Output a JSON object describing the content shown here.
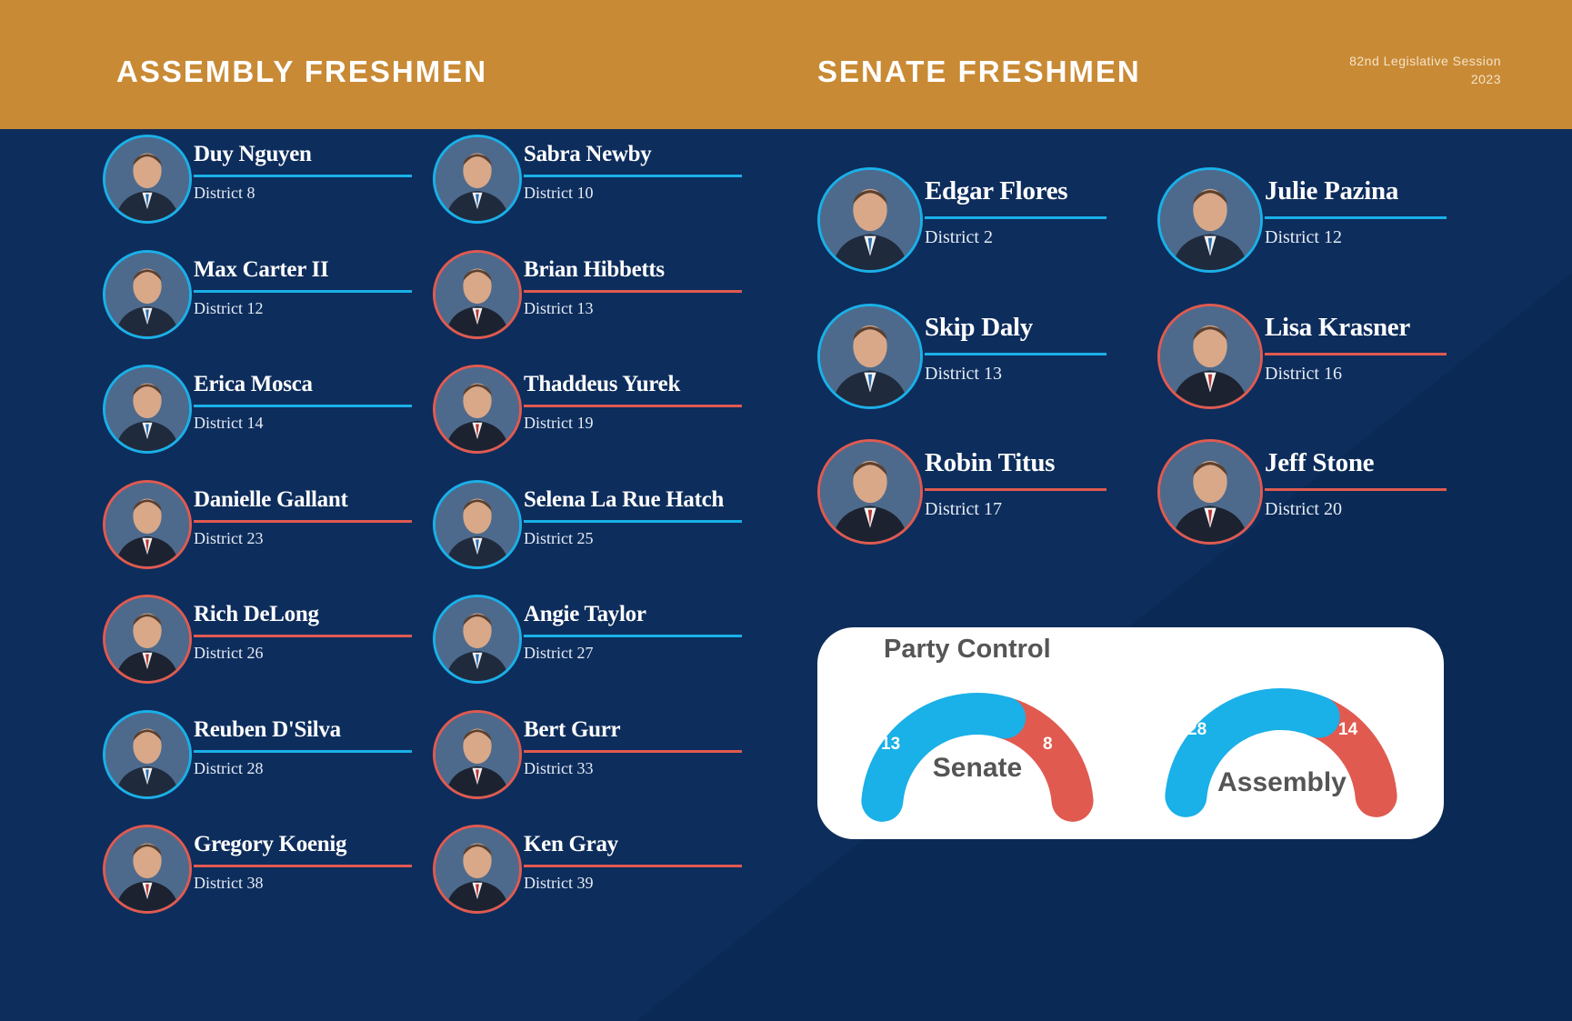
{
  "header": {
    "assembly_title": "ASSEMBLY FRESHMEN",
    "senate_title": "SENATE FRESHMEN",
    "session_line1": "82nd Legislative Session",
    "session_line2": "2023"
  },
  "colors": {
    "democrat": "#1ab0e8",
    "republican": "#e05a50",
    "header": "#c98a35",
    "background": "#0d2d5c"
  },
  "assembly": [
    {
      "name": "Duy Nguyen",
      "district": "District 8",
      "party": "D"
    },
    {
      "name": "Sabra Newby",
      "district": "District 10",
      "party": "D"
    },
    {
      "name": "Max Carter II",
      "district": "District 12",
      "party": "D"
    },
    {
      "name": "Brian Hibbetts",
      "district": "District 13",
      "party": "R"
    },
    {
      "name": "Erica Mosca",
      "district": "District 14",
      "party": "D"
    },
    {
      "name": "Thaddeus Yurek",
      "district": "District 19",
      "party": "R"
    },
    {
      "name": "Danielle Gallant",
      "district": "District 23",
      "party": "R"
    },
    {
      "name": "Selena La Rue Hatch",
      "district": "District 25",
      "party": "D"
    },
    {
      "name": "Rich DeLong",
      "district": "District 26",
      "party": "R"
    },
    {
      "name": "Angie Taylor",
      "district": "District 27",
      "party": "D"
    },
    {
      "name": "Reuben D'Silva",
      "district": "District 28",
      "party": "D"
    },
    {
      "name": "Bert Gurr",
      "district": "District 33",
      "party": "R"
    },
    {
      "name": "Gregory Koenig",
      "district": "District 38",
      "party": "R"
    },
    {
      "name": "Ken Gray",
      "district": "District 39",
      "party": "R"
    }
  ],
  "senate": [
    {
      "name": "Edgar Flores",
      "district": "District 2",
      "party": "D"
    },
    {
      "name": "Julie Pazina",
      "district": "District 12",
      "party": "D"
    },
    {
      "name": "Skip Daly",
      "district": "District 13",
      "party": "D"
    },
    {
      "name": "Lisa Krasner",
      "district": "District 16",
      "party": "R"
    },
    {
      "name": "Robin Titus",
      "district": "District 17",
      "party": "R"
    },
    {
      "name": "Jeff Stone",
      "district": "District 20",
      "party": "R"
    }
  ],
  "party_control": {
    "title": "Party Control",
    "senate": {
      "label": "Senate",
      "democrat": 13,
      "republican": 8
    },
    "assembly": {
      "label": "Assembly",
      "democrat": 28,
      "republican": 14
    }
  }
}
